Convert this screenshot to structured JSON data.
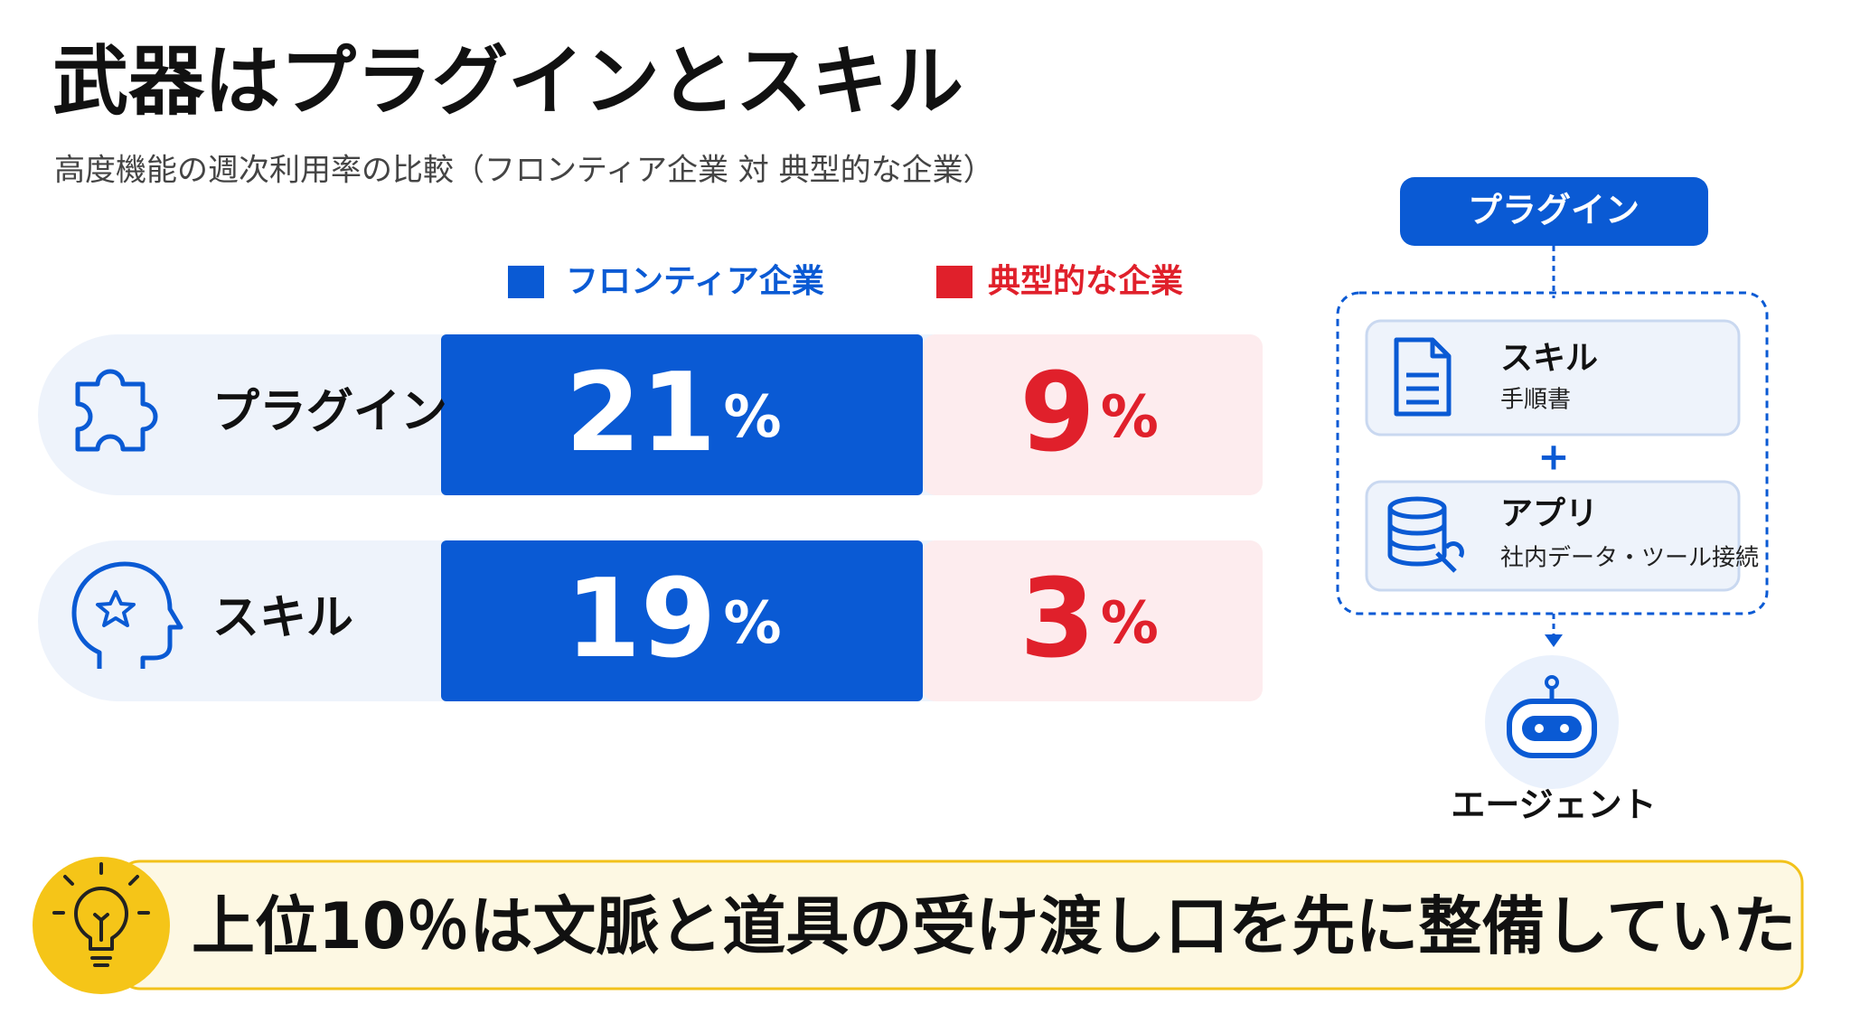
{
  "header": {
    "title": "武器はプラグインとスキル",
    "subtitle": "高度機能の週次利用率の比較（フロンティア企業 対 典型的な企業）"
  },
  "legend": [
    "フロンティア企業",
    "典型的な企業"
  ],
  "rows": [
    {
      "label": "プラグイン",
      "frontier": 21,
      "typical": 9
    },
    {
      "label": "スキル",
      "frontier": 19,
      "typical": 3
    }
  ],
  "unit": "%",
  "diagram": {
    "top": "プラグイン",
    "cards": [
      {
        "title": "スキル",
        "subtitle": "手順書"
      },
      {
        "title": "アプリ",
        "subtitle": "社内データ・ツール接続"
      }
    ],
    "plus": "+",
    "agent": "エージェント"
  },
  "banner": "上位10％は文脈と道具の受け渡し口を先に整備していた"
}
